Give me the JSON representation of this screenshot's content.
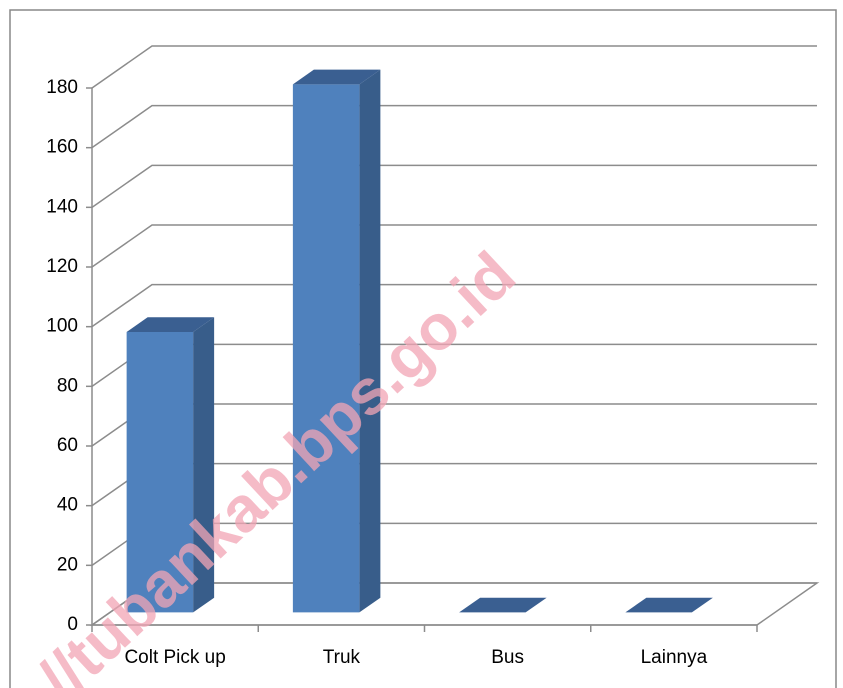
{
  "chart_data": {
    "type": "bar3d",
    "categories": [
      "Colt Pick up",
      "Truk",
      "Bus",
      "Lainnya"
    ],
    "values": [
      94,
      177,
      0,
      0
    ],
    "color": "#4f81bd",
    "ylim": [
      0,
      180
    ],
    "yticks": [
      0,
      20,
      40,
      60,
      80,
      100,
      120,
      140,
      160,
      180
    ],
    "grid": true,
    "watermark": "//tubankab.bps.go.id"
  }
}
